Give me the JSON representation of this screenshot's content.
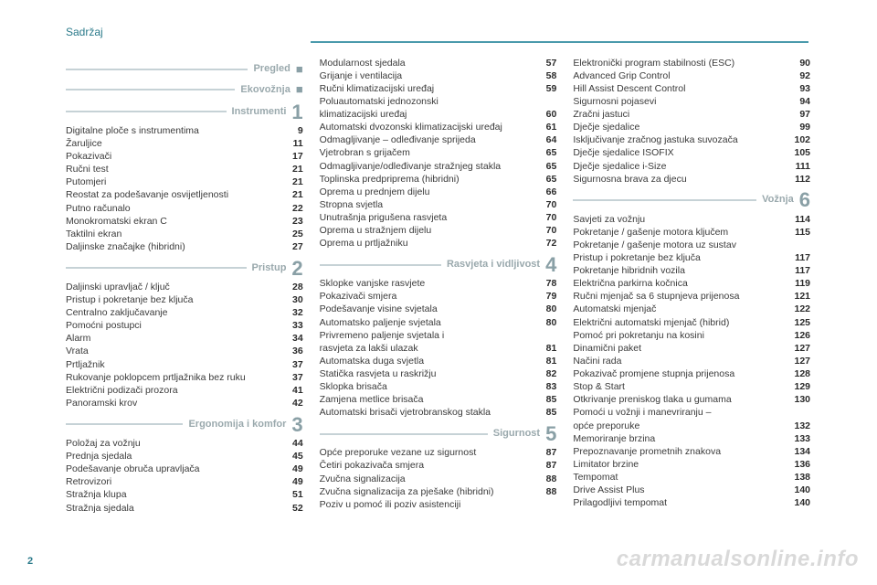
{
  "header": "Sadržaj",
  "pageNumber": "2",
  "watermark": "carmanualsonline.info",
  "colors": {
    "accent": "#2a7a8a",
    "rule": "#4a9aac",
    "sectionRule": "#c6d2d6",
    "sectionText": "#9aa9ad",
    "text": "#3a3a3a"
  },
  "columns": [
    {
      "blocks": [
        {
          "type": "section",
          "title": "Pregled",
          "marker": "■"
        },
        {
          "type": "section",
          "title": "Ekovožnja",
          "marker": "■"
        },
        {
          "type": "section",
          "title": "Instrumenti",
          "num": "1"
        },
        {
          "type": "row",
          "label": "Digitalne ploče s instrumentima",
          "page": "9"
        },
        {
          "type": "row",
          "label": "Žaruljice",
          "page": "11"
        },
        {
          "type": "row",
          "label": "Pokazivači",
          "page": "17"
        },
        {
          "type": "row",
          "label": "Ručni test",
          "page": "21"
        },
        {
          "type": "row",
          "label": "Putomjeri",
          "page": "21"
        },
        {
          "type": "row",
          "label": "Reostat za podešavanje osvijetljenosti",
          "page": "21"
        },
        {
          "type": "row",
          "label": "Putno računalo",
          "page": "22"
        },
        {
          "type": "row",
          "label": "Monokromatski ekran C",
          "page": "23"
        },
        {
          "type": "row",
          "label": "Taktilni ekran",
          "page": "25"
        },
        {
          "type": "row",
          "label": "Daljinske značajke (hibridni)",
          "page": "27"
        },
        {
          "type": "section",
          "title": "Pristup",
          "num": "2"
        },
        {
          "type": "row",
          "label": "Daljinski upravljač / ključ",
          "page": "28"
        },
        {
          "type": "row",
          "label": "Pristup i pokretanje bez ključa",
          "page": "30"
        },
        {
          "type": "row",
          "label": "Centralno zaključavanje",
          "page": "32"
        },
        {
          "type": "row",
          "label": "Pomoćni postupci",
          "page": "33"
        },
        {
          "type": "row",
          "label": "Alarm",
          "page": "34"
        },
        {
          "type": "row",
          "label": "Vrata",
          "page": "36"
        },
        {
          "type": "row",
          "label": "Prtljažnik",
          "page": "37"
        },
        {
          "type": "row",
          "label": "Rukovanje poklopcem prtljažnika bez ruku",
          "page": "37"
        },
        {
          "type": "row",
          "label": "Električni podizači prozora",
          "page": "41"
        },
        {
          "type": "row",
          "label": "Panoramski krov",
          "page": "42"
        },
        {
          "type": "section",
          "title": "Ergonomija i komfor",
          "num": "3"
        },
        {
          "type": "row",
          "label": "Položaj za vožnju",
          "page": "44"
        },
        {
          "type": "row",
          "label": "Prednja sjedala",
          "page": "45"
        },
        {
          "type": "row",
          "label": "Podešavanje obruča upravljača",
          "page": "49"
        },
        {
          "type": "row",
          "label": "Retrovizori",
          "page": "49"
        },
        {
          "type": "row",
          "label": "Stražnja klupa",
          "page": "51"
        },
        {
          "type": "row",
          "label": "Stražnja sjedala",
          "page": "52"
        }
      ]
    },
    {
      "blocks": [
        {
          "type": "row",
          "label": "Modularnost sjedala",
          "page": "57"
        },
        {
          "type": "row",
          "label": "Grijanje i ventilacija",
          "page": "58"
        },
        {
          "type": "row",
          "label": "Ručni klimatizacijski uređaj",
          "page": "59"
        },
        {
          "type": "row-nopage",
          "label": "Poluautomatski jednozonski"
        },
        {
          "type": "row",
          "label": "klimatizacijski uređaj",
          "page": "60"
        },
        {
          "type": "row",
          "label": "Automatski dvozonski klimatizacijski uređaj",
          "page": "61"
        },
        {
          "type": "row",
          "label": "Odmagljivanje – odleđivanje sprijeda",
          "page": "64"
        },
        {
          "type": "row",
          "label": "Vjetrobran s grijačem",
          "page": "65"
        },
        {
          "type": "row",
          "label": "Odmagljivanje/odleđivanje stražnjeg stakla",
          "page": "65"
        },
        {
          "type": "row",
          "label": "Toplinska predpriprema (hibridni)",
          "page": "65"
        },
        {
          "type": "row",
          "label": "Oprema u prednjem dijelu",
          "page": "66"
        },
        {
          "type": "row",
          "label": "Stropna svjetla",
          "page": "70"
        },
        {
          "type": "row",
          "label": "Unutrašnja prigušena rasvjeta",
          "page": "70"
        },
        {
          "type": "row",
          "label": "Oprema u stražnjem dijelu",
          "page": "70"
        },
        {
          "type": "row",
          "label": "Oprema u prtljažniku",
          "page": "72"
        },
        {
          "type": "section",
          "title": "Rasvjeta i vidljivost",
          "num": "4"
        },
        {
          "type": "row",
          "label": "Sklopke vanjske rasvjete",
          "page": "78"
        },
        {
          "type": "row",
          "label": "Pokazivači smjera",
          "page": "79"
        },
        {
          "type": "row",
          "label": "Podešavanje visine svjetala",
          "page": "80"
        },
        {
          "type": "row",
          "label": "Automatsko paljenje svjetala",
          "page": "80"
        },
        {
          "type": "row-nopage",
          "label": "Privremeno paljenje svjetala i"
        },
        {
          "type": "row",
          "label": "rasvjeta za lakši ulazak",
          "page": "81"
        },
        {
          "type": "row",
          "label": "Automatska duga svjetla",
          "page": "81"
        },
        {
          "type": "row",
          "label": "Statička rasvjeta u raskrižju",
          "page": "82"
        },
        {
          "type": "row",
          "label": "Sklopka brisača",
          "page": "83"
        },
        {
          "type": "row",
          "label": "Zamjena metlice brisača",
          "page": "85"
        },
        {
          "type": "row",
          "label": "Automatski brisači vjetrobranskog stakla",
          "page": "85"
        },
        {
          "type": "section",
          "title": "Sigurnost",
          "num": "5"
        },
        {
          "type": "row",
          "label": "Opće preporuke vezane uz sigurnost",
          "page": "87"
        },
        {
          "type": "row",
          "label": "Četiri pokazivača smjera",
          "page": "87"
        },
        {
          "type": "row",
          "label": "Zvučna signalizacija",
          "page": "88"
        },
        {
          "type": "row",
          "label": "Zvučna signalizacija za pješake (hibridni)",
          "page": "88"
        },
        {
          "type": "row-nopage",
          "label": "Poziv u pomoć ili poziv asistenciji"
        }
      ]
    },
    {
      "blocks": [
        {
          "type": "row",
          "label": "Elektronički program stabilnosti (ESC)",
          "page": "90"
        },
        {
          "type": "row",
          "label": "Advanced Grip Control",
          "page": "92"
        },
        {
          "type": "row",
          "label": "Hill Assist Descent Control",
          "page": "93"
        },
        {
          "type": "row",
          "label": "Sigurnosni pojasevi",
          "page": "94"
        },
        {
          "type": "row",
          "label": "Zračni jastuci",
          "page": "97"
        },
        {
          "type": "row",
          "label": "Dječje sjedalice",
          "page": "99"
        },
        {
          "type": "row",
          "label": "Isključivanje zračnog jastuka suvozača",
          "page": "102"
        },
        {
          "type": "row",
          "label": "Dječje sjedalice ISOFIX",
          "page": "105"
        },
        {
          "type": "row",
          "label": "Dječje sjedalice i-Size",
          "page": "111"
        },
        {
          "type": "row",
          "label": "Sigurnosna brava za djecu",
          "page": "112"
        },
        {
          "type": "section",
          "title": "Vožnja",
          "num": "6"
        },
        {
          "type": "row",
          "label": "Savjeti za vožnju",
          "page": "114"
        },
        {
          "type": "row",
          "label": "Pokretanje / gašenje motora ključem",
          "page": "115"
        },
        {
          "type": "row-nopage",
          "label": "Pokretanje / gašenje motora uz sustav"
        },
        {
          "type": "row",
          "label": "Pristup i pokretanje bez ključa",
          "page": "117"
        },
        {
          "type": "row",
          "label": "Pokretanje hibridnih vozila",
          "page": "117"
        },
        {
          "type": "row",
          "label": "Električna parkirna kočnica",
          "page": "119"
        },
        {
          "type": "row",
          "label": "Ručni mjenjač sa 6 stupnjeva prijenosa",
          "page": "121"
        },
        {
          "type": "row",
          "label": "Automatski mjenjač",
          "page": "122"
        },
        {
          "type": "row",
          "label": "Električni automatski mjenjač (hibrid)",
          "page": "125"
        },
        {
          "type": "row",
          "label": "Pomoć pri pokretanju na kosini",
          "page": "126"
        },
        {
          "type": "row",
          "label": "Dinamični paket",
          "page": "127"
        },
        {
          "type": "row",
          "label": "Načini rada",
          "page": "127"
        },
        {
          "type": "row",
          "label": "Pokazivač promjene stupnja prijenosa",
          "page": "128"
        },
        {
          "type": "row",
          "label": "Stop & Start",
          "page": "129"
        },
        {
          "type": "row",
          "label": "Otkrivanje preniskog tlaka u gumama",
          "page": "130"
        },
        {
          "type": "row-nopage",
          "label": "Pomoći u vožnji i manevriranju –"
        },
        {
          "type": "row",
          "label": "opće preporuke",
          "page": "132"
        },
        {
          "type": "row",
          "label": "Memoriranje brzina",
          "page": "133"
        },
        {
          "type": "row",
          "label": "Prepoznavanje prometnih znakova",
          "page": "134"
        },
        {
          "type": "row",
          "label": "Limitator brzine",
          "page": "136"
        },
        {
          "type": "row",
          "label": "Tempomat",
          "page": "138"
        },
        {
          "type": "row",
          "label": "Drive Assist Plus",
          "page": "140"
        },
        {
          "type": "row",
          "label": "Prilagodljivi tempomat",
          "page": "140"
        }
      ]
    }
  ]
}
